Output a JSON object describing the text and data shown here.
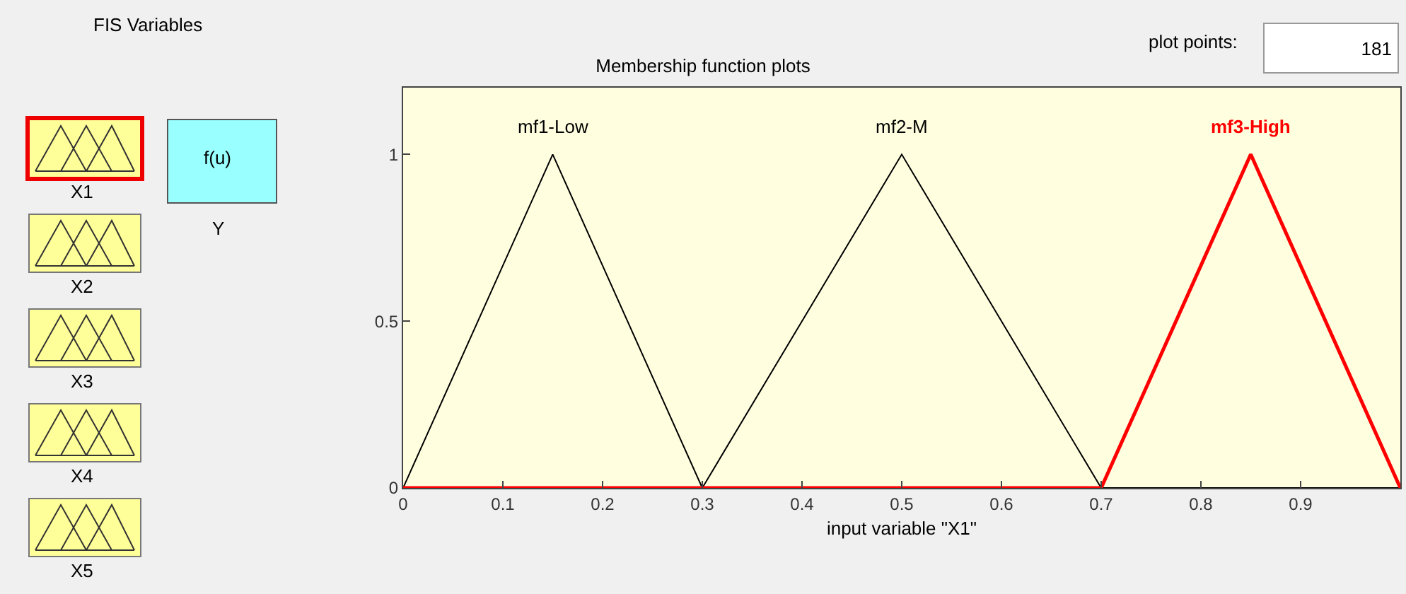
{
  "chart_data": [
    {
      "type": "other",
      "title": "FIS Variables",
      "annotations": [
        "X1",
        "X2",
        "X3",
        "X4",
        "X5",
        "f(u)",
        "Y",
        "plot points:",
        "181"
      ]
    },
    {
      "type": "line",
      "title": "Membership function plots",
      "xlabel": "input variable \"X1\"",
      "xlim": [
        0,
        1
      ],
      "ylim": [
        0,
        1.2
      ],
      "xticks": [
        0,
        0.1,
        0.2,
        0.3,
        0.4,
        0.5,
        0.6,
        0.7,
        0.8,
        0.9
      ],
      "yticks": [
        0,
        0.5,
        1
      ],
      "grid": false,
      "legend": false,
      "line_style": "solid",
      "series": [
        {
          "name": "mf1-Low",
          "color": "#000000",
          "x": [
            0,
            0.15,
            0.3,
            1
          ],
          "values": [
            0,
            1,
            0,
            0
          ]
        },
        {
          "name": "mf2-M",
          "color": "#000000",
          "x": [
            0,
            0.3,
            0.5,
            0.7,
            1
          ],
          "values": [
            0,
            0,
            1,
            0,
            0
          ]
        },
        {
          "name": "mf3-High",
          "color": "#ff0000",
          "x": [
            0,
            0.7,
            0.85,
            1
          ],
          "values": [
            0,
            0,
            1,
            0
          ]
        }
      ]
    }
  ]
}
